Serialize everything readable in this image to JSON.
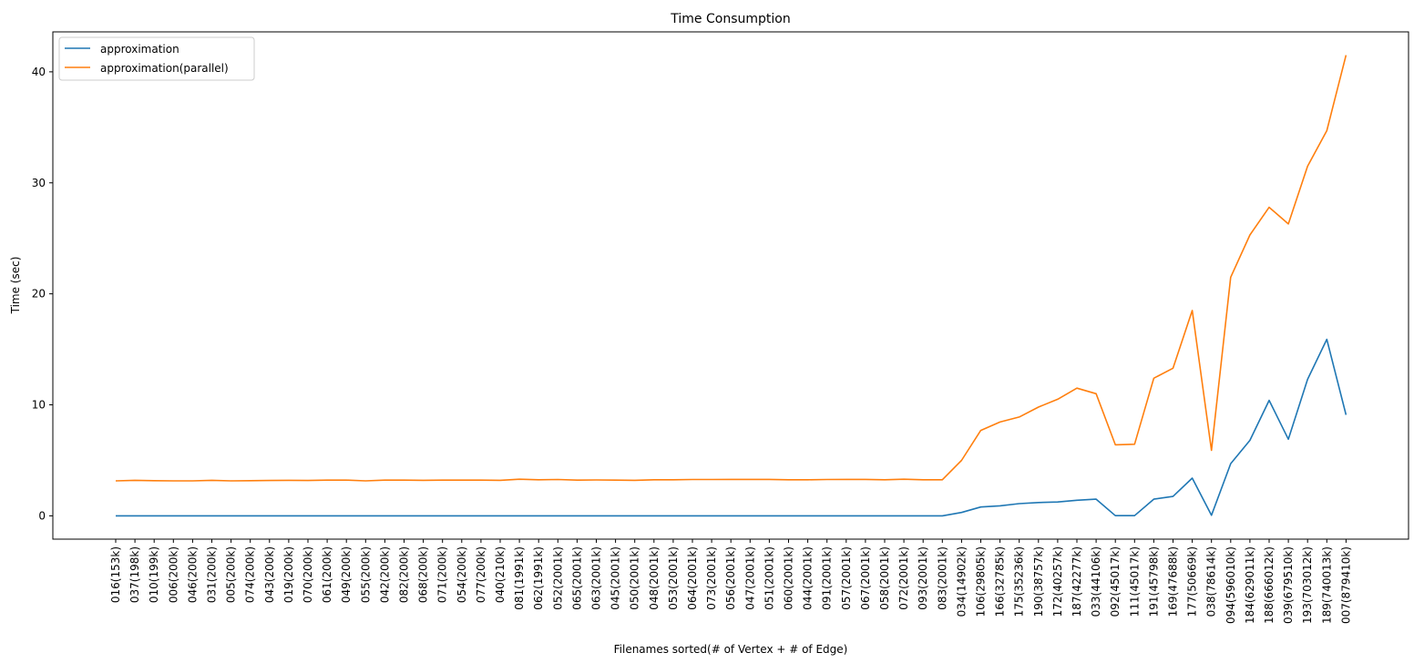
{
  "chart_data": {
    "type": "line",
    "title": "Time Consumption",
    "xlabel": "Filenames sorted(# of Vertex + # of Edge)",
    "ylabel": "Time (sec)",
    "ylim": [
      -2.1,
      43.6
    ],
    "yticks": [
      0,
      10,
      20,
      30,
      40
    ],
    "grid": false,
    "legend_position": "top-left",
    "categories": [
      "016(153k)",
      "037(198k)",
      "010(199k)",
      "006(200k)",
      "046(200k)",
      "031(200k)",
      "005(200k)",
      "074(200k)",
      "043(200k)",
      "019(200k)",
      "070(200k)",
      "061(200k)",
      "049(200k)",
      "055(200k)",
      "042(200k)",
      "082(200k)",
      "068(200k)",
      "071(200k)",
      "054(200k)",
      "077(200k)",
      "040(210k)",
      "081(1991k)",
      "062(1991k)",
      "052(2001k)",
      "065(2001k)",
      "063(2001k)",
      "045(2001k)",
      "050(2001k)",
      "048(2001k)",
      "053(2001k)",
      "064(2001k)",
      "073(2001k)",
      "056(2001k)",
      "047(2001k)",
      "051(2001k)",
      "060(2001k)",
      "044(2001k)",
      "091(2001k)",
      "057(2001k)",
      "067(2001k)",
      "058(2001k)",
      "072(2001k)",
      "093(2001k)",
      "083(2001k)",
      "034(14902k)",
      "106(29805k)",
      "166(32785k)",
      "175(35236k)",
      "190(38757k)",
      "172(40257k)",
      "187(42277k)",
      "033(44106k)",
      "092(45017k)",
      "111(45017k)",
      "191(45798k)",
      "169(47688k)",
      "177(50669k)",
      "038(78614k)",
      "094(596010k)",
      "184(629011k)",
      "188(666012k)",
      "039(679510k)",
      "193(703012k)",
      "189(740013k)",
      "007(879410k)"
    ],
    "series": [
      {
        "name": "approximation",
        "color": "#1f77b4",
        "values": [
          0,
          0,
          0,
          0,
          0,
          0,
          0,
          0,
          0,
          0,
          0,
          0,
          0,
          0,
          0,
          0,
          0,
          0,
          0,
          0,
          0,
          0,
          0,
          0,
          0,
          0,
          0,
          0,
          0,
          0,
          0,
          0,
          0,
          0,
          0,
          0,
          0,
          0,
          0,
          0,
          0,
          0,
          0,
          0,
          0.3,
          0.8,
          0.9,
          1.1,
          1.2,
          1.25,
          1.4,
          1.5,
          0.02,
          0.02,
          1.5,
          1.75,
          3.4,
          0.05,
          4.7,
          6.8,
          10.4,
          6.9,
          12.3,
          15.9,
          9.1
        ]
      },
      {
        "name": "approximation(parallel)",
        "color": "#ff7f0e",
        "values": [
          3.15,
          3.2,
          3.17,
          3.15,
          3.15,
          3.2,
          3.15,
          3.17,
          3.18,
          3.2,
          3.18,
          3.22,
          3.22,
          3.15,
          3.22,
          3.22,
          3.2,
          3.22,
          3.22,
          3.22,
          3.2,
          3.3,
          3.25,
          3.27,
          3.22,
          3.23,
          3.22,
          3.2,
          3.25,
          3.25,
          3.27,
          3.27,
          3.28,
          3.28,
          3.28,
          3.25,
          3.25,
          3.27,
          3.28,
          3.28,
          3.25,
          3.3,
          3.25,
          3.25,
          5.0,
          7.7,
          8.45,
          8.9,
          9.8,
          10.5,
          11.5,
          11.0,
          6.4,
          6.45,
          12.4,
          13.3,
          18.5,
          5.9,
          21.5,
          25.3,
          27.8,
          26.3,
          31.5,
          34.7,
          41.5
        ]
      }
    ]
  }
}
